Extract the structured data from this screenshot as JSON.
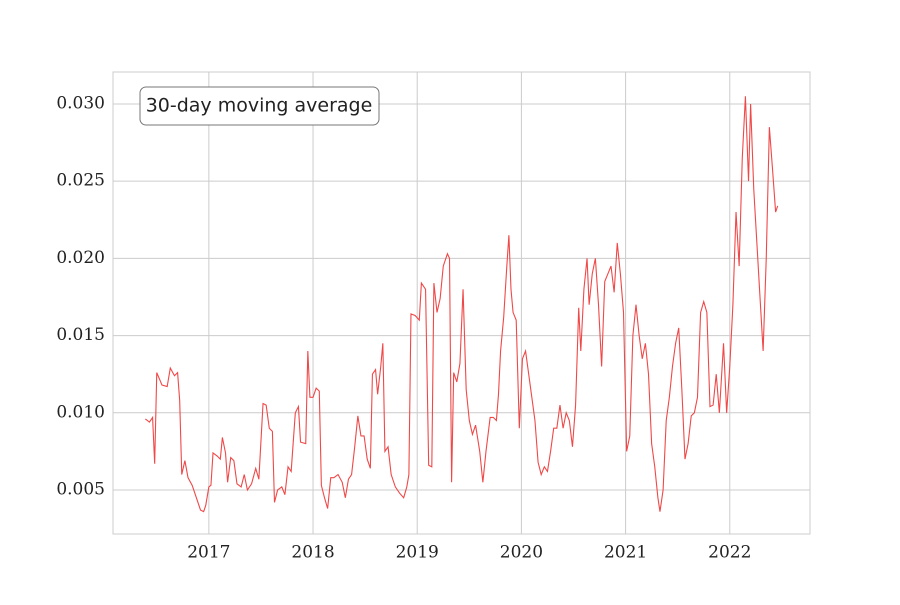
{
  "chart_data": {
    "type": "line",
    "annotation": "30-day moving average",
    "color": "#f04848",
    "grid": true,
    "xlim": [
      2016.08,
      2022.77
    ],
    "xticks": [
      2017,
      2018,
      2019,
      2020,
      2021,
      2022
    ],
    "ylim": [
      0.00215,
      0.03207
    ],
    "yticks": [
      {
        "value": 0.005,
        "label": "0.005"
      },
      {
        "value": 0.01,
        "label": "0.010"
      },
      {
        "value": 0.015,
        "label": "0.015"
      },
      {
        "value": 0.02,
        "label": "0.020"
      },
      {
        "value": 0.025,
        "label": "0.025"
      },
      {
        "value": 0.03,
        "label": "0.030"
      }
    ],
    "x": [
      2016.39,
      2016.43,
      2016.46,
      2016.48,
      2016.5,
      2016.55,
      2016.6,
      2016.63,
      2016.67,
      2016.7,
      2016.72,
      2016.74,
      2016.77,
      2016.8,
      2016.84,
      2016.88,
      2016.92,
      2016.95,
      2016.97,
      2017.0,
      2017.02,
      2017.04,
      2017.08,
      2017.11,
      2017.13,
      2017.16,
      2017.18,
      2017.21,
      2017.24,
      2017.27,
      2017.31,
      2017.34,
      2017.37,
      2017.41,
      2017.45,
      2017.48,
      2017.52,
      2017.55,
      2017.58,
      2017.61,
      2017.63,
      2017.66,
      2017.7,
      2017.73,
      2017.76,
      2017.79,
      2017.83,
      2017.86,
      2017.88,
      2017.93,
      2017.95,
      2017.97,
      2018.0,
      2018.03,
      2018.06,
      2018.08,
      2018.11,
      2018.14,
      2018.17,
      2018.2,
      2018.24,
      2018.28,
      2018.31,
      2018.34,
      2018.37,
      2018.4,
      2018.43,
      2018.46,
      2018.49,
      2018.52,
      2018.55,
      2018.57,
      2018.6,
      2018.62,
      2018.65,
      2018.67,
      2018.69,
      2018.72,
      2018.75,
      2018.79,
      2018.83,
      2018.87,
      2018.9,
      2018.92,
      2018.94,
      2018.98,
      2019.02,
      2019.04,
      2019.08,
      2019.11,
      2019.14,
      2019.16,
      2019.19,
      2019.22,
      2019.25,
      2019.29,
      2019.31,
      2019.33,
      2019.35,
      2019.38,
      2019.41,
      2019.44,
      2019.47,
      2019.5,
      2019.53,
      2019.56,
      2019.6,
      2019.63,
      2019.66,
      2019.7,
      2019.73,
      2019.76,
      2019.78,
      2019.8,
      2019.83,
      2019.86,
      2019.88,
      2019.9,
      2019.92,
      2019.95,
      2019.98,
      2020.01,
      2020.04,
      2020.07,
      2020.1,
      2020.13,
      2020.16,
      2020.19,
      2020.22,
      2020.25,
      2020.28,
      2020.31,
      2020.34,
      2020.37,
      2020.4,
      2020.43,
      2020.46,
      2020.49,
      2020.52,
      2020.55,
      2020.57,
      2020.6,
      2020.63,
      2020.65,
      2020.68,
      2020.71,
      2020.74,
      2020.77,
      2020.8,
      2020.83,
      2020.86,
      2020.89,
      2020.92,
      2020.95,
      2020.98,
      2021.01,
      2021.04,
      2021.07,
      2021.1,
      2021.13,
      2021.16,
      2021.19,
      2021.22,
      2021.25,
      2021.28,
      2021.31,
      2021.33,
      2021.36,
      2021.39,
      2021.42,
      2021.45,
      2021.48,
      2021.51,
      2021.54,
      2021.57,
      2021.6,
      2021.63,
      2021.66,
      2021.69,
      2021.72,
      2021.75,
      2021.78,
      2021.81,
      2021.84,
      2021.87,
      2021.9,
      2021.94,
      2021.97,
      2022.0,
      2022.03,
      2022.06,
      2022.09,
      2022.12,
      2022.15,
      2022.18,
      2022.2,
      2022.23,
      2022.26,
      2022.29,
      2022.32,
      2022.35,
      2022.38,
      2022.41,
      2022.44,
      2022.46
    ],
    "values": [
      0.0096,
      0.0094,
      0.0097,
      0.0067,
      0.0126,
      0.0118,
      0.0117,
      0.0129,
      0.0124,
      0.0126,
      0.0108,
      0.006,
      0.0069,
      0.0058,
      0.0053,
      0.0045,
      0.0037,
      0.0036,
      0.004,
      0.0052,
      0.0053,
      0.0074,
      0.0072,
      0.007,
      0.0084,
      0.0074,
      0.0055,
      0.0071,
      0.0069,
      0.0054,
      0.0052,
      0.006,
      0.005,
      0.0054,
      0.0064,
      0.0057,
      0.0106,
      0.0105,
      0.009,
      0.0088,
      0.0042,
      0.005,
      0.0052,
      0.0047,
      0.0065,
      0.0062,
      0.01,
      0.0104,
      0.0081,
      0.008,
      0.014,
      0.011,
      0.011,
      0.0116,
      0.0114,
      0.0053,
      0.0045,
      0.0038,
      0.0058,
      0.0058,
      0.006,
      0.0055,
      0.0045,
      0.0057,
      0.006,
      0.0078,
      0.0098,
      0.0085,
      0.0085,
      0.007,
      0.0064,
      0.0125,
      0.0128,
      0.0112,
      0.013,
      0.0145,
      0.0075,
      0.0078,
      0.006,
      0.0052,
      0.0048,
      0.0045,
      0.0052,
      0.006,
      0.0164,
      0.0163,
      0.016,
      0.0184,
      0.018,
      0.0066,
      0.0065,
      0.0184,
      0.0165,
      0.0174,
      0.0195,
      0.0203,
      0.02,
      0.0055,
      0.0126,
      0.012,
      0.0132,
      0.018,
      0.0115,
      0.0095,
      0.0086,
      0.0092,
      0.0075,
      0.0055,
      0.0075,
      0.0097,
      0.0097,
      0.0095,
      0.0112,
      0.014,
      0.0162,
      0.0195,
      0.0215,
      0.018,
      0.0165,
      0.016,
      0.009,
      0.0135,
      0.014,
      0.0125,
      0.011,
      0.0095,
      0.0068,
      0.006,
      0.0065,
      0.0062,
      0.0075,
      0.009,
      0.009,
      0.0105,
      0.009,
      0.01,
      0.0095,
      0.0078,
      0.0105,
      0.0168,
      0.014,
      0.018,
      0.02,
      0.017,
      0.019,
      0.02,
      0.017,
      0.013,
      0.0185,
      0.019,
      0.0195,
      0.0178,
      0.021,
      0.019,
      0.0165,
      0.0075,
      0.0085,
      0.015,
      0.017,
      0.015,
      0.0135,
      0.0145,
      0.0125,
      0.008,
      0.0065,
      0.0045,
      0.0036,
      0.005,
      0.0095,
      0.011,
      0.013,
      0.0145,
      0.0155,
      0.0115,
      0.007,
      0.008,
      0.0098,
      0.01,
      0.011,
      0.0165,
      0.0172,
      0.0165,
      0.0104,
      0.0105,
      0.0125,
      0.01,
      0.0145,
      0.01,
      0.013,
      0.017,
      0.023,
      0.0195,
      0.0265,
      0.0305,
      0.025,
      0.03,
      0.0245,
      0.021,
      0.0175,
      0.014,
      0.02,
      0.0285,
      0.0258,
      0.023,
      0.0234
    ]
  }
}
